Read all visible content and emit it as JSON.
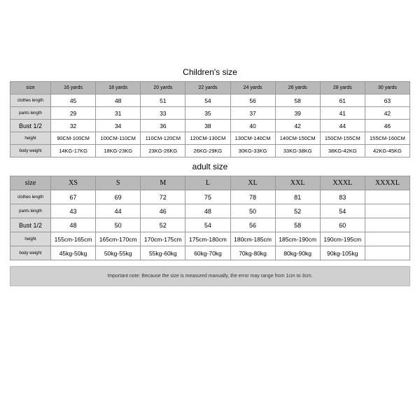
{
  "children": {
    "title": "Children's size",
    "header": [
      "size",
      "16 yards",
      "18 yards",
      "20 yards",
      "22 yards",
      "24 yards",
      "26 yards",
      "28 yards",
      "30 yards"
    ],
    "rows": [
      {
        "label": "clothes length",
        "cells": [
          "45",
          "48",
          "51",
          "54",
          "56",
          "58",
          "61",
          "63"
        ],
        "lab_small": true
      },
      {
        "label": "pants length",
        "cells": [
          "29",
          "31",
          "33",
          "35",
          "37",
          "39",
          "41",
          "42"
        ],
        "lab_small": true
      },
      {
        "label": "Bust 1/2",
        "cells": [
          "32",
          "34",
          "36",
          "38",
          "40",
          "42",
          "44",
          "46"
        ],
        "lab_small": false
      },
      {
        "label": "height",
        "cells": [
          "90CM-100CM",
          "100CM-110CM",
          "110CM-120CM",
          "120CM-130CM",
          "130CM-140CM",
          "140CM-150CM",
          "150CM-155CM",
          "155CM-160CM"
        ],
        "lab_small": true,
        "small": true
      },
      {
        "label": "body weight",
        "cells": [
          "14KG-17KG",
          "18KG-23KG",
          "23KG-26KG",
          "26KG-29KG",
          "30KG-33KG",
          "33KG-38KG",
          "38KG-42KG",
          "42KG-45KG"
        ],
        "lab_small": true,
        "small": true
      }
    ]
  },
  "adult": {
    "title": "adult size",
    "header": [
      "size",
      "XS",
      "S",
      "M",
      "L",
      "XL",
      "XXL",
      "XXXL",
      "XXXXL"
    ],
    "rows": [
      {
        "label": "clothes length",
        "cells": [
          "67",
          "69",
          "72",
          "75",
          "78",
          "81",
          "83",
          ""
        ],
        "lab_small": true
      },
      {
        "label": "pants length",
        "cells": [
          "43",
          "44",
          "46",
          "48",
          "50",
          "52",
          "54",
          ""
        ],
        "lab_small": true
      },
      {
        "label": "Bust 1/2",
        "cells": [
          "48",
          "50",
          "52",
          "54",
          "56",
          "58",
          "60",
          ""
        ],
        "lab_small": false
      },
      {
        "label": "height",
        "cells": [
          "155cm-165cm",
          "165cm-170cm",
          "170cm-175cm",
          "175cm-180cm",
          "180cm-185cm",
          "185cm-190cm",
          "190cm-195cm",
          ""
        ],
        "lab_small": true,
        "small": true
      },
      {
        "label": "body weight",
        "cells": [
          "45kg-50kg",
          "50kg-55kg",
          "55kg-60kg",
          "60kg-70kg",
          "70kg-80kg",
          "80kg-90kg",
          "90kg-105kg",
          ""
        ],
        "lab_small": true,
        "small": true
      }
    ]
  },
  "note": "Important note: Because the size is measured manually, the error may range from 1cm to 3cm.",
  "colors": {
    "header_bg": "#b9b9b9",
    "label_bg": "#d9d9d9",
    "border": "#999999",
    "note_bg": "#d0d0d0"
  }
}
